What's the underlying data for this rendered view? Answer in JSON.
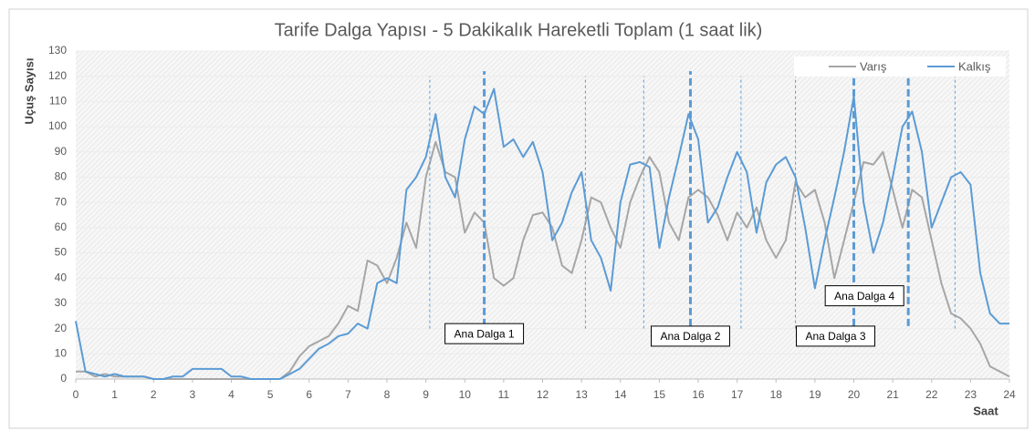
{
  "chart_data": {
    "type": "line",
    "title": "Tarife Dalga Yapısı - 5 Dakikalık Hareketli Toplam (1 saat lik)",
    "xlabel": "Saat",
    "ylabel": "Uçuş Sayısı",
    "x": [
      0,
      0.25,
      0.5,
      0.75,
      1,
      1.25,
      1.5,
      1.75,
      2,
      2.25,
      2.5,
      2.75,
      3,
      3.25,
      3.5,
      3.75,
      4,
      4.25,
      4.5,
      4.75,
      5,
      5.25,
      5.5,
      5.75,
      6,
      6.25,
      6.5,
      6.75,
      7,
      7.25,
      7.5,
      7.75,
      8,
      8.25,
      8.5,
      8.75,
      9,
      9.25,
      9.5,
      9.75,
      10,
      10.25,
      10.5,
      10.75,
      11,
      11.25,
      11.5,
      11.75,
      12,
      12.25,
      12.5,
      12.75,
      13,
      13.25,
      13.5,
      13.75,
      14,
      14.25,
      14.5,
      14.75,
      15,
      15.25,
      15.5,
      15.75,
      16,
      16.25,
      16.5,
      16.75,
      17,
      17.25,
      17.5,
      17.75,
      18,
      18.25,
      18.5,
      18.75,
      19,
      19.25,
      19.5,
      19.75,
      20,
      20.25,
      20.5,
      20.75,
      21,
      21.25,
      21.5,
      21.75,
      22,
      22.25,
      22.5,
      22.75,
      23,
      23.25,
      23.5,
      23.75,
      24
    ],
    "series": [
      {
        "name": "Varış",
        "color": "#a6a6a6",
        "values": [
          3,
          3,
          1,
          2,
          1,
          1,
          1,
          1,
          0,
          0,
          0,
          0,
          0,
          0,
          0,
          0,
          0,
          0,
          0,
          0,
          0,
          0,
          3,
          9,
          13,
          15,
          17,
          22,
          29,
          27,
          47,
          45,
          38,
          48,
          62,
          52,
          80,
          94,
          82,
          80,
          58,
          66,
          62,
          40,
          37,
          40,
          55,
          65,
          66,
          60,
          45,
          42,
          55,
          72,
          70,
          60,
          52,
          70,
          80,
          88,
          82,
          62,
          55,
          72,
          75,
          72,
          65,
          55,
          66,
          60,
          68,
          55,
          48,
          55,
          78,
          72,
          75,
          62,
          40,
          55,
          70,
          86,
          85,
          90,
          75,
          60,
          75,
          72,
          55,
          38,
          26,
          24,
          20,
          14,
          5,
          3,
          1
        ]
      },
      {
        "name": "Kalkış",
        "color": "#5b9bd5",
        "values": [
          23,
          3,
          2,
          1,
          2,
          1,
          1,
          1,
          0,
          0,
          1,
          1,
          4,
          4,
          4,
          4,
          1,
          1,
          0,
          0,
          0,
          0,
          2,
          4,
          8,
          12,
          14,
          17,
          18,
          22,
          20,
          38,
          40,
          38,
          75,
          80,
          88,
          105,
          80,
          72,
          95,
          108,
          105,
          115,
          92,
          95,
          88,
          94,
          82,
          55,
          62,
          74,
          82,
          55,
          48,
          35,
          70,
          85,
          86,
          84,
          52,
          72,
          88,
          105,
          95,
          62,
          68,
          80,
          90,
          82,
          58,
          78,
          85,
          88,
          80,
          60,
          36,
          55,
          72,
          90,
          112,
          70,
          50,
          62,
          80,
          100,
          106,
          90,
          60,
          70,
          80,
          82,
          77,
          42,
          26,
          22,
          22
        ]
      }
    ],
    "xlim": [
      0,
      24
    ],
    "xticks": [
      0,
      1,
      2,
      3,
      4,
      5,
      6,
      7,
      8,
      9,
      10,
      11,
      12,
      13,
      14,
      15,
      16,
      17,
      18,
      19,
      20,
      21,
      22,
      23,
      24
    ],
    "ylim": [
      0,
      130
    ],
    "yticks": [
      0,
      10,
      20,
      30,
      40,
      50,
      60,
      70,
      80,
      90,
      100,
      110,
      120,
      130
    ],
    "legend": "top-right",
    "reference_lines": [
      {
        "x": 9.1,
        "style": "thin"
      },
      {
        "x": 13.1,
        "style": "thin"
      },
      {
        "x": 14.6,
        "style": "thin"
      },
      {
        "x": 17.1,
        "style": "thin"
      },
      {
        "x": 18.5,
        "style": "thin"
      },
      {
        "x": 22.6,
        "style": "thin"
      },
      {
        "x": 10.5,
        "style": "thick"
      },
      {
        "x": 15.8,
        "style": "thick"
      },
      {
        "x": 20.0,
        "style": "thick"
      },
      {
        "x": 21.4,
        "style": "thick"
      }
    ],
    "annotations": [
      {
        "text": "Ana Dalga 1",
        "x": 10.5
      },
      {
        "text": "Ana Dalga 2",
        "x": 15.8
      },
      {
        "text": "Ana Dalga 3",
        "x": 20.0
      },
      {
        "text": "Ana Dalga 4",
        "x": 21.4
      }
    ]
  }
}
